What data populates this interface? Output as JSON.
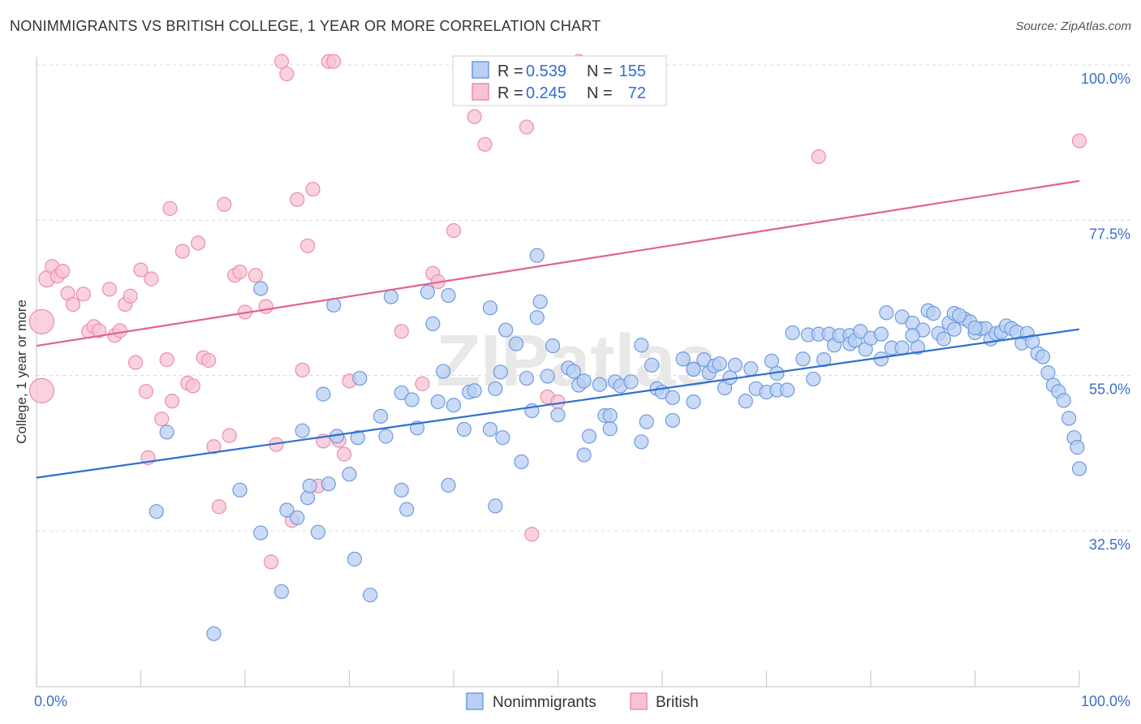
{
  "title": "NONIMMIGRANTS VS BRITISH COLLEGE, 1 YEAR OR MORE CORRELATION CHART",
  "source": "Source: ZipAtlas.com",
  "watermark": "ZIPatlas",
  "colors": {
    "blue_fill": "#b9cff3",
    "blue_stroke": "#6e9be0",
    "blue_line": "#2f6fd0",
    "pink_fill": "#f7c3d3",
    "pink_stroke": "#ec8eab",
    "pink_line": "#e0648e",
    "grid": "#d8d8d8"
  },
  "legend": {
    "rows": [
      {
        "r_label": "R = ",
        "r_value": "0.539",
        "n_label": "N = ",
        "n_value": "155"
      },
      {
        "r_label": "R = ",
        "r_value": "0.245",
        "n_label": "N = ",
        "n_value": "72"
      }
    ]
  },
  "chart_data": {
    "type": "scatter",
    "ylabel": "College, 1 year or more",
    "x_tick_labels": [
      "0.0%",
      "100.0%"
    ],
    "y_tick_labels": [
      "100.0%",
      "77.5%",
      "55.0%",
      "32.5%"
    ],
    "y_ticks": [
      100,
      77.5,
      55,
      32.5
    ],
    "xlim": [
      0,
      100
    ],
    "ylim": [
      13,
      103
    ],
    "grid": true,
    "legend_position": "top-center",
    "series": [
      {
        "name": "Nonimmigrants",
        "trend": {
          "x0": 0,
          "y0": 40.2,
          "x1": 100,
          "y1": 61.7
        },
        "points": [
          [
            11.5,
            35.3
          ],
          [
            12.5,
            46.8
          ],
          [
            17,
            17.6
          ],
          [
            19.5,
            38.4
          ],
          [
            21.5,
            67.6
          ],
          [
            21.5,
            32.2
          ],
          [
            23.5,
            23.7
          ],
          [
            24,
            35.5
          ],
          [
            25,
            34.4
          ],
          [
            25.5,
            47
          ],
          [
            26,
            37.3
          ],
          [
            26.2,
            39
          ],
          [
            27,
            32.3
          ],
          [
            27.5,
            52.3
          ],
          [
            28,
            39.3
          ],
          [
            28.5,
            65.2
          ],
          [
            28.8,
            46.2
          ],
          [
            30,
            40.7
          ],
          [
            30.5,
            28.4
          ],
          [
            30.8,
            46
          ],
          [
            31,
            54.6
          ],
          [
            32,
            23.2
          ],
          [
            33,
            49.1
          ],
          [
            33.5,
            46.2
          ],
          [
            34,
            66.4
          ],
          [
            35,
            38.4
          ],
          [
            35,
            52.5
          ],
          [
            35.5,
            35.6
          ],
          [
            36,
            51.5
          ],
          [
            36.5,
            47.4
          ],
          [
            37.5,
            67.1
          ],
          [
            38,
            62.5
          ],
          [
            38.5,
            51.2
          ],
          [
            39,
            55.6
          ],
          [
            39.5,
            39.1
          ],
          [
            39.5,
            66.6
          ],
          [
            40,
            50.7
          ],
          [
            41,
            47.2
          ],
          [
            41.5,
            52.6
          ],
          [
            42,
            52.8
          ],
          [
            43.5,
            64.8
          ],
          [
            43.5,
            47.2
          ],
          [
            44,
            53.1
          ],
          [
            44,
            36.1
          ],
          [
            44.5,
            55.5
          ],
          [
            44.7,
            46
          ],
          [
            45,
            61.6
          ],
          [
            46,
            59.6
          ],
          [
            46.5,
            42.5
          ],
          [
            47,
            54.6
          ],
          [
            47.5,
            49.9
          ],
          [
            48,
            63.4
          ],
          [
            48,
            72.4
          ],
          [
            48.3,
            65.7
          ],
          [
            49,
            54.9
          ],
          [
            49.5,
            59.3
          ],
          [
            50,
            49.3
          ],
          [
            51,
            56.1
          ],
          [
            51.5,
            55.6
          ],
          [
            52,
            53.6
          ],
          [
            52.5,
            54.2
          ],
          [
            52.5,
            43.5
          ],
          [
            53,
            46.2
          ],
          [
            54,
            53.7
          ],
          [
            54.5,
            49.2
          ],
          [
            55,
            47.3
          ],
          [
            55,
            49.2
          ],
          [
            55.5,
            54.1
          ],
          [
            56,
            53.5
          ],
          [
            57,
            54.1
          ],
          [
            58,
            45.4
          ],
          [
            58,
            59.4
          ],
          [
            58.5,
            48.3
          ],
          [
            59,
            56.5
          ],
          [
            59.5,
            53.1
          ],
          [
            60,
            52.6
          ],
          [
            61,
            48.5
          ],
          [
            61,
            51.8
          ],
          [
            62,
            57.4
          ],
          [
            63,
            55.9
          ],
          [
            63,
            51.2
          ],
          [
            63,
            55.9
          ],
          [
            64,
            57.3
          ],
          [
            64.5,
            55.4
          ],
          [
            65,
            56.4
          ],
          [
            65.5,
            56.7
          ],
          [
            66,
            53.2
          ],
          [
            66.5,
            54.7
          ],
          [
            67,
            56.5
          ],
          [
            68,
            51.3
          ],
          [
            68.5,
            56
          ],
          [
            69,
            53.1
          ],
          [
            70,
            52.6
          ],
          [
            70.5,
            57.1
          ],
          [
            71,
            55.3
          ],
          [
            71,
            52.9
          ],
          [
            72,
            52.9
          ],
          [
            72.5,
            61.2
          ],
          [
            73.5,
            57.4
          ],
          [
            74,
            60.9
          ],
          [
            74.5,
            54.5
          ],
          [
            75,
            61
          ],
          [
            75.5,
            57.3
          ],
          [
            76,
            61
          ],
          [
            76.5,
            59.4
          ],
          [
            77,
            60.8
          ],
          [
            78,
            60.8
          ],
          [
            78,
            59.6
          ],
          [
            78.5,
            60.1
          ],
          [
            79,
            61.4
          ],
          [
            79.5,
            58.8
          ],
          [
            80,
            60.4
          ],
          [
            81,
            57.4
          ],
          [
            81,
            61
          ],
          [
            81.5,
            64.1
          ],
          [
            82,
            59
          ],
          [
            83,
            63.5
          ],
          [
            83,
            59
          ],
          [
            84,
            62.6
          ],
          [
            84.5,
            59.1
          ],
          [
            85,
            61.6
          ],
          [
            85.5,
            64.4
          ],
          [
            86,
            64
          ],
          [
            86.5,
            61.1
          ],
          [
            87,
            60.3
          ],
          [
            87.5,
            62.6
          ],
          [
            88,
            64
          ],
          [
            88,
            61.7
          ],
          [
            89,
            63.2
          ],
          [
            89.5,
            62.8
          ],
          [
            90,
            61.2
          ],
          [
            90.5,
            61.8
          ],
          [
            91,
            61.8
          ],
          [
            91.5,
            60.3
          ],
          [
            92,
            61.1
          ],
          [
            92.5,
            61.3
          ],
          [
            93,
            62.2
          ],
          [
            93.5,
            61.8
          ],
          [
            94,
            61.3
          ],
          [
            94.5,
            59.7
          ],
          [
            95,
            61.1
          ],
          [
            95.5,
            59.9
          ],
          [
            96,
            58.2
          ],
          [
            96.5,
            57.7
          ],
          [
            97,
            55.4
          ],
          [
            97.5,
            53.6
          ],
          [
            98,
            52.7
          ],
          [
            98.5,
            51.4
          ],
          [
            99,
            48.8
          ],
          [
            99.5,
            46
          ],
          [
            99.8,
            44.6
          ],
          [
            100,
            41.5
          ],
          [
            84,
            60.8
          ],
          [
            88.5,
            63.7
          ],
          [
            90,
            61.9
          ]
        ]
      },
      {
        "name": "British",
        "trend": {
          "x0": 0,
          "y0": 59.3,
          "x1": 100,
          "y1": 83.2
        },
        "points": [
          [
            0.5,
            62.8
          ],
          [
            0.5,
            52.8
          ],
          [
            1,
            69
          ],
          [
            1.5,
            70.8
          ],
          [
            2,
            69.4
          ],
          [
            2.5,
            70.1
          ],
          [
            3,
            66.9
          ],
          [
            3.5,
            65.3
          ],
          [
            4.5,
            66.8
          ],
          [
            5,
            61.4
          ],
          [
            5.5,
            62.1
          ],
          [
            6,
            61.5
          ],
          [
            7,
            67.5
          ],
          [
            7.5,
            60.8
          ],
          [
            8,
            61.5
          ],
          [
            8.5,
            65.3
          ],
          [
            9,
            66.5
          ],
          [
            9.5,
            56.9
          ],
          [
            10,
            70.3
          ],
          [
            10.5,
            52.7
          ],
          [
            10.7,
            43.1
          ],
          [
            11,
            69
          ],
          [
            12,
            48.7
          ],
          [
            12.5,
            57.3
          ],
          [
            12.8,
            79.2
          ],
          [
            13,
            51.3
          ],
          [
            14,
            73
          ],
          [
            14.5,
            53.9
          ],
          [
            15,
            53.5
          ],
          [
            15.5,
            74.2
          ],
          [
            16,
            57.6
          ],
          [
            16.5,
            57.2
          ],
          [
            17,
            44.7
          ],
          [
            17.5,
            36
          ],
          [
            18,
            79.8
          ],
          [
            18.5,
            46.3
          ],
          [
            19,
            69.5
          ],
          [
            19.5,
            70
          ],
          [
            20,
            64.2
          ],
          [
            21,
            69.5
          ],
          [
            22,
            65
          ],
          [
            22.5,
            28
          ],
          [
            23,
            45
          ],
          [
            23.5,
            100.5
          ],
          [
            24,
            98.7
          ],
          [
            24.5,
            34
          ],
          [
            25,
            80.5
          ],
          [
            25.5,
            55.8
          ],
          [
            26,
            73.8
          ],
          [
            26.5,
            82
          ],
          [
            27,
            39
          ],
          [
            27.5,
            45.5
          ],
          [
            28,
            100.5
          ],
          [
            28.5,
            100.5
          ],
          [
            29,
            45.6
          ],
          [
            29.5,
            43.6
          ],
          [
            30,
            54.2
          ],
          [
            35,
            61.4
          ],
          [
            37,
            53.8
          ],
          [
            38,
            69.8
          ],
          [
            38.5,
            68.6
          ],
          [
            40,
            76
          ],
          [
            42,
            92.5
          ],
          [
            43,
            88.5
          ],
          [
            47,
            91
          ],
          [
            47.5,
            32
          ],
          [
            49,
            51.9
          ],
          [
            50,
            51.2
          ],
          [
            52,
            100.5
          ],
          [
            75,
            86.7
          ],
          [
            100,
            89
          ]
        ]
      }
    ]
  },
  "bottom_legend": [
    "Nonimmigrants",
    "British"
  ]
}
